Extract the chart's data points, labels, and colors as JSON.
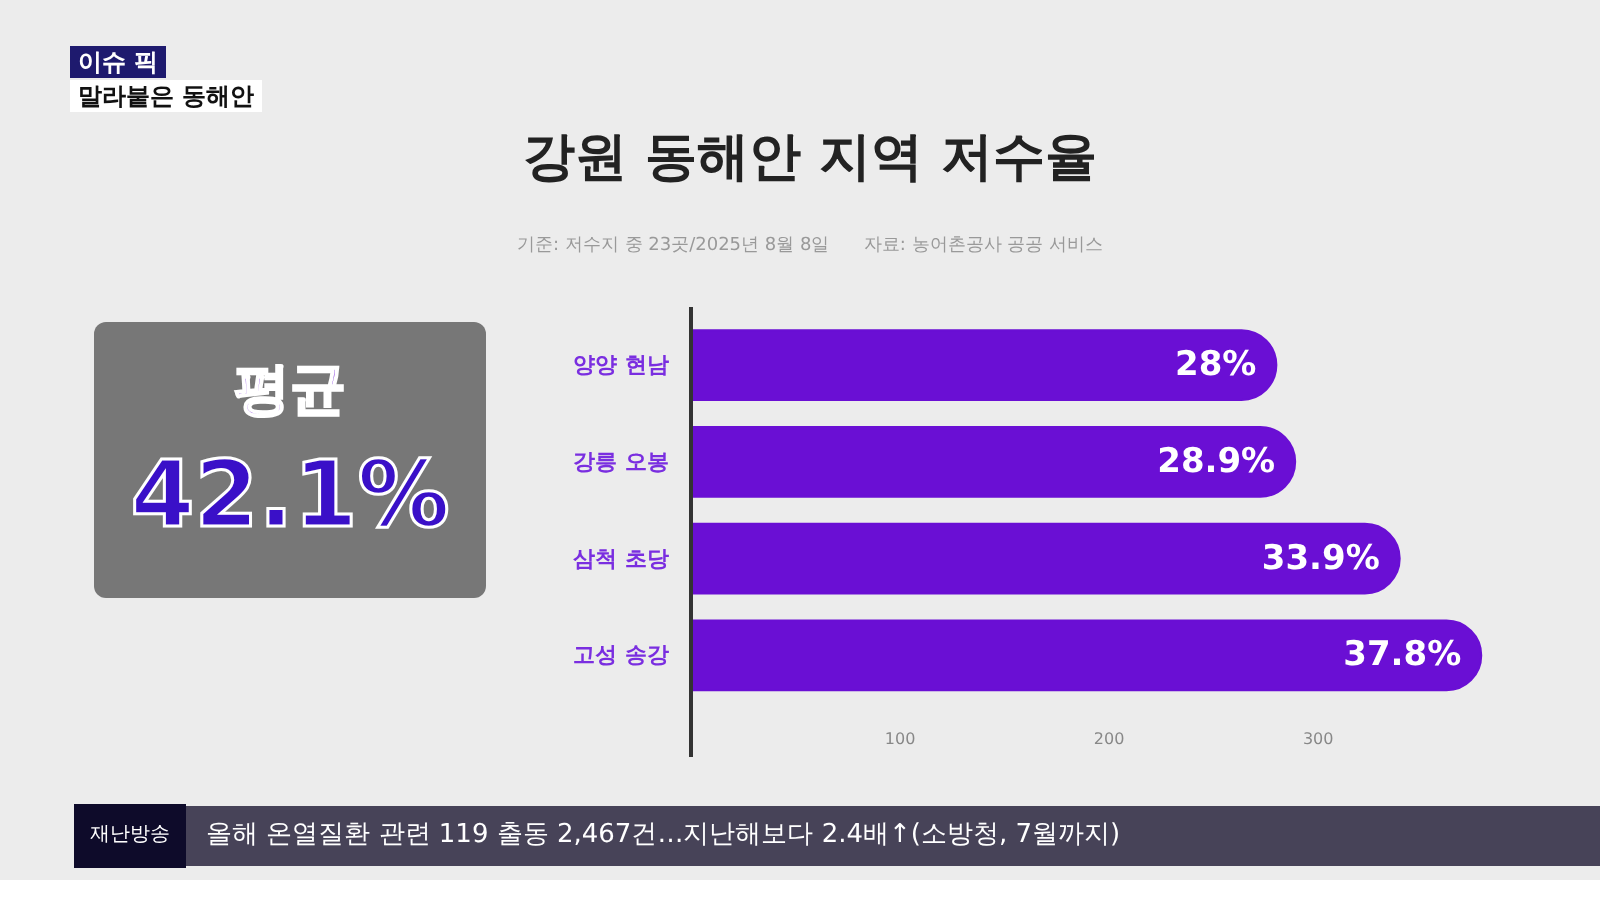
{
  "chart_data": {
    "type": "bar",
    "orientation": "horizontal",
    "title": "강원 동해안 지역 저수율",
    "subtitle": "기준: 저수지 중 23곳/2025년 8월 8일",
    "categories": [
      "양양 현남",
      "강릉 오봉",
      "삼척 초당",
      "고성 송강"
    ],
    "values": [
      28,
      28.9,
      33.9,
      37.8
    ],
    "color": "#6a0fd4",
    "value_labels": [
      "28%",
      "28.9%",
      "33.9%",
      "37.8%"
    ],
    "grid": false,
    "annotations": [
      "이슈 픽",
      "말라붙은 동해안",
      "자료: 농어촌공사 공공 서비스",
      "평균",
      "42.1%",
      "재난방송",
      "올해 온열질환 관련 119 출동 2,467건…지난해보다 2.4배↑(소방청, 7월까지)",
      "100",
      "200",
      "300"
    ]
  }
}
